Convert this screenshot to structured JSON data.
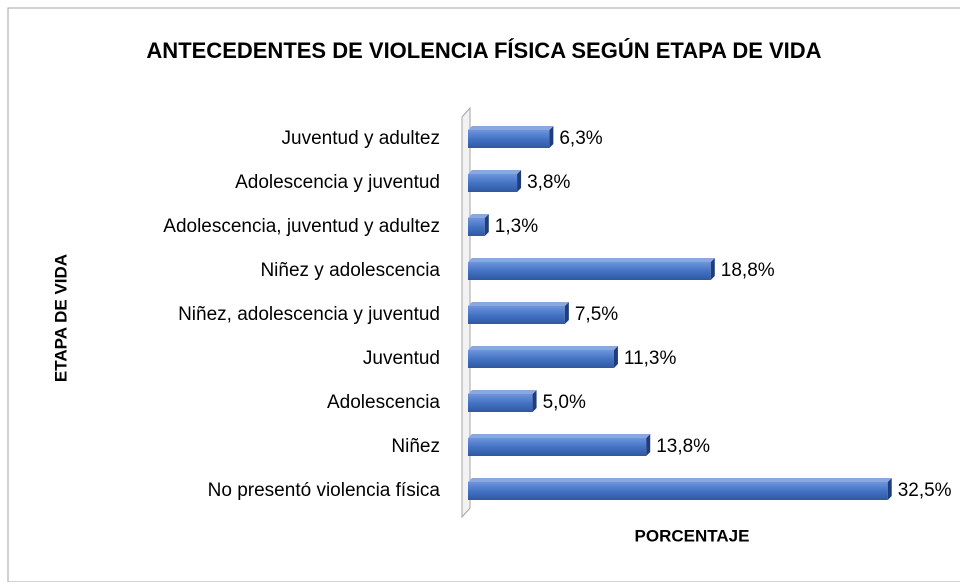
{
  "chart_data": {
    "type": "bar",
    "orientation": "horizontal",
    "title": "ANTECEDENTES DE VIOLENCIA FÍSICA SEGÚN ETAPA DE VIDA",
    "x_label": "PORCENTAJE",
    "y_label": "ETAPA DE VIDA",
    "categories": [
      "Juventud y adultez",
      "Adolescencia y juventud",
      "Adolescencia, juventud y adultez",
      "Niñez y adolescencia",
      "Niñez, adolescencia y juventud",
      "Juventud",
      "Adolescencia",
      "Niñez",
      "No presentó violencia física"
    ],
    "values": [
      6.3,
      3.8,
      1.3,
      18.8,
      7.5,
      11.3,
      5.0,
      13.8,
      32.5
    ],
    "value_labels": [
      "6,3%",
      "3,8%",
      "1,3%",
      "18,8%",
      "7,5%",
      "11,3%",
      "5,0%",
      "13,8%",
      "32,5%"
    ],
    "color": "#4472c4",
    "xlim": [
      0,
      35
    ]
  }
}
